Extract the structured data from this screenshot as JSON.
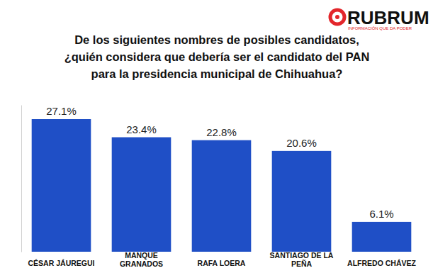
{
  "chart_data": {
    "type": "bar",
    "title": "De los siguientes nombres de posibles candidatos, ¿quién considera que debería ser el candidato del PAN para la presidencia municipal de Chihuahua?",
    "annotations": [
      "RUBRUM",
      "INFORMACIÓN QUE DA PODER"
    ],
    "categories": [
      "CÉSAR JÁUREGUI",
      "MANQUE GRANADOS",
      "RAFA LOERA",
      "SANTIAGO DE LA PEÑA",
      "ALFREDO CHÁVEZ"
    ],
    "values": [
      27.1,
      23.4,
      22.8,
      20.6,
      6.1
    ],
    "value_labels": [
      "27.1%",
      "23.4%",
      "22.8%",
      "20.6%",
      "6.1%"
    ],
    "color": "#1f4fc6",
    "ylim": [
      0,
      30
    ],
    "yticks": [],
    "grid": false,
    "data_labels": true,
    "tick_labels": "x"
  }
}
